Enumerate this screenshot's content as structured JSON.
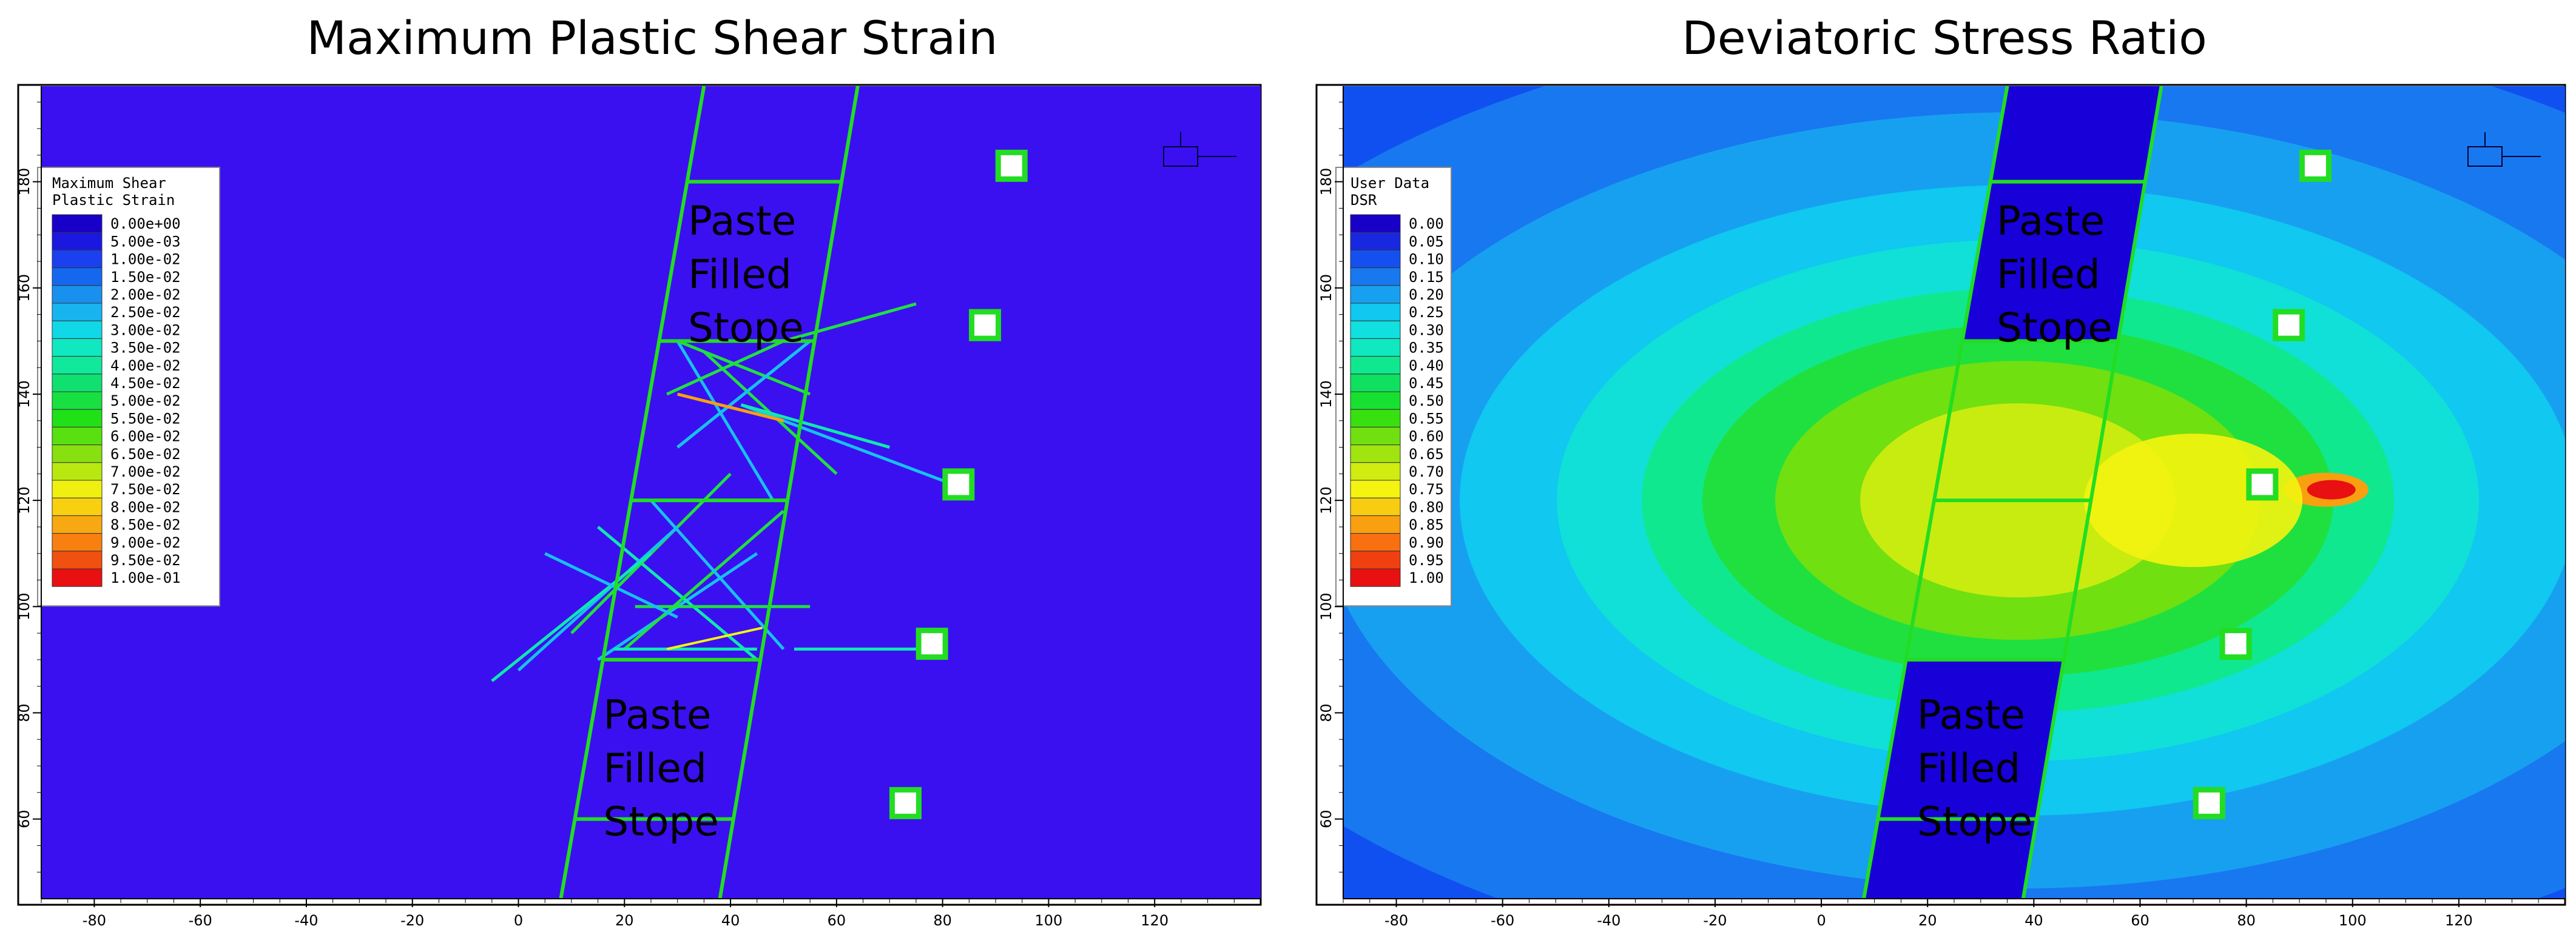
{
  "panels": [
    {
      "id": "left",
      "title": "Maximum Plastic Shear Strain",
      "background": "#3a10f0",
      "legend": {
        "title_lines": [
          "Maximum Shear",
          "Plastic Strain"
        ],
        "entries": [
          {
            "label": "0.00e+00",
            "color": "#1800c8"
          },
          {
            "label": "5.00e-03",
            "color": "#1a18e0"
          },
          {
            "label": "1.00e-02",
            "color": "#1a40f0"
          },
          {
            "label": "1.50e-02",
            "color": "#1468f0"
          },
          {
            "label": "2.00e-02",
            "color": "#1890f0"
          },
          {
            "label": "2.50e-02",
            "color": "#18b4f0"
          },
          {
            "label": "3.00e-02",
            "color": "#10d8e8"
          },
          {
            "label": "3.50e-02",
            "color": "#10e8c0"
          },
          {
            "label": "4.00e-02",
            "color": "#10e89c"
          },
          {
            "label": "4.50e-02",
            "color": "#10e070"
          },
          {
            "label": "5.00e-02",
            "color": "#18e040"
          },
          {
            "label": "5.50e-02",
            "color": "#20e018"
          },
          {
            "label": "6.00e-02",
            "color": "#58e010"
          },
          {
            "label": "6.50e-02",
            "color": "#88e010"
          },
          {
            "label": "7.00e-02",
            "color": "#b8e810"
          },
          {
            "label": "7.50e-02",
            "color": "#f0f010"
          },
          {
            "label": "8.00e-02",
            "color": "#f8d010"
          },
          {
            "label": "8.50e-02",
            "color": "#f8a810"
          },
          {
            "label": "9.00e-02",
            "color": "#f88010"
          },
          {
            "label": "9.50e-02",
            "color": "#f05010"
          },
          {
            "label": "1.00e-01",
            "color": "#e81010"
          }
        ]
      },
      "stope_labels": [
        {
          "lines": [
            "Paste",
            "Filled",
            "Stope"
          ],
          "x": 32,
          "y": 170
        },
        {
          "lines": [
            "Paste",
            "Filled",
            "Stope"
          ],
          "x": 16,
          "y": 77
        }
      ]
    },
    {
      "id": "right",
      "title": "Deviatoric Stress Ratio",
      "background": "#1050f0",
      "legend": {
        "title_lines": [
          "User Data",
          "DSR"
        ],
        "entries": [
          {
            "label": "0.00",
            "color": "#1800c8"
          },
          {
            "label": "0.05",
            "color": "#1828e0"
          },
          {
            "label": "0.10",
            "color": "#1450f0"
          },
          {
            "label": "0.15",
            "color": "#1878f0"
          },
          {
            "label": "0.20",
            "color": "#18a0f0"
          },
          {
            "label": "0.25",
            "color": "#10c8f0"
          },
          {
            "label": "0.30",
            "color": "#10e0e0"
          },
          {
            "label": "0.35",
            "color": "#10e8c0"
          },
          {
            "label": "0.40",
            "color": "#10e890"
          },
          {
            "label": "0.45",
            "color": "#10e060"
          },
          {
            "label": "0.50",
            "color": "#18e030"
          },
          {
            "label": "0.55",
            "color": "#38e010"
          },
          {
            "label": "0.60",
            "color": "#70e010"
          },
          {
            "label": "0.65",
            "color": "#a0e410"
          },
          {
            "label": "0.70",
            "color": "#d0ec10"
          },
          {
            "label": "0.75",
            "color": "#f4f410"
          },
          {
            "label": "0.80",
            "color": "#f8cc10"
          },
          {
            "label": "0.85",
            "color": "#f8a010"
          },
          {
            "label": "0.90",
            "color": "#f87010"
          },
          {
            "label": "0.95",
            "color": "#f04010"
          },
          {
            "label": "1.00",
            "color": "#e81010"
          }
        ]
      },
      "stope_labels": [
        {
          "lines": [
            "Paste",
            "Filled",
            "Stope"
          ],
          "x": 33,
          "y": 170
        },
        {
          "lines": [
            "Paste",
            "Filled",
            "Stope"
          ],
          "x": 18,
          "y": 77
        }
      ]
    }
  ],
  "chart_data": {
    "type": "contour",
    "xlim": [
      -90,
      140
    ],
    "ylim": [
      45,
      198
    ],
    "x_ticks": [
      -80,
      -60,
      -40,
      -20,
      0,
      20,
      40,
      60,
      80,
      100,
      120
    ],
    "y_ticks": [
      60,
      80,
      100,
      120,
      140,
      160,
      180
    ],
    "stope_geometry": {
      "shaft_left_edge": [
        [
          8,
          45
        ],
        [
          35,
          198
        ]
      ],
      "shaft_right_edge": [
        [
          38,
          45
        ],
        [
          64,
          198
        ]
      ],
      "horizontal_lines_y": [
        60,
        90,
        120,
        150,
        180
      ]
    },
    "monitoring_points": [
      {
        "x": 93,
        "y": 183
      },
      {
        "x": 88,
        "y": 153
      },
      {
        "x": 83,
        "y": 123
      },
      {
        "x": 78,
        "y": 93
      },
      {
        "x": 73,
        "y": 63
      }
    ]
  }
}
